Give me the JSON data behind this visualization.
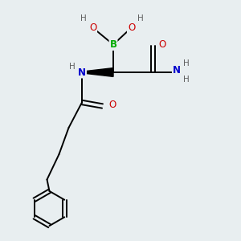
{
  "bg_color": "#e8eef0",
  "atom_colors": {
    "C": "#000000",
    "H": "#606060",
    "N": "#0000cc",
    "O": "#cc0000",
    "B": "#00aa00"
  },
  "bond_color": "#000000",
  "bond_width": 1.4,
  "font_size_atom": 8.5,
  "font_size_H": 7.5,
  "figsize": [
    3.0,
    3.0
  ],
  "dpi": 100,
  "xlim": [
    0,
    10
  ],
  "ylim": [
    0,
    10
  ]
}
